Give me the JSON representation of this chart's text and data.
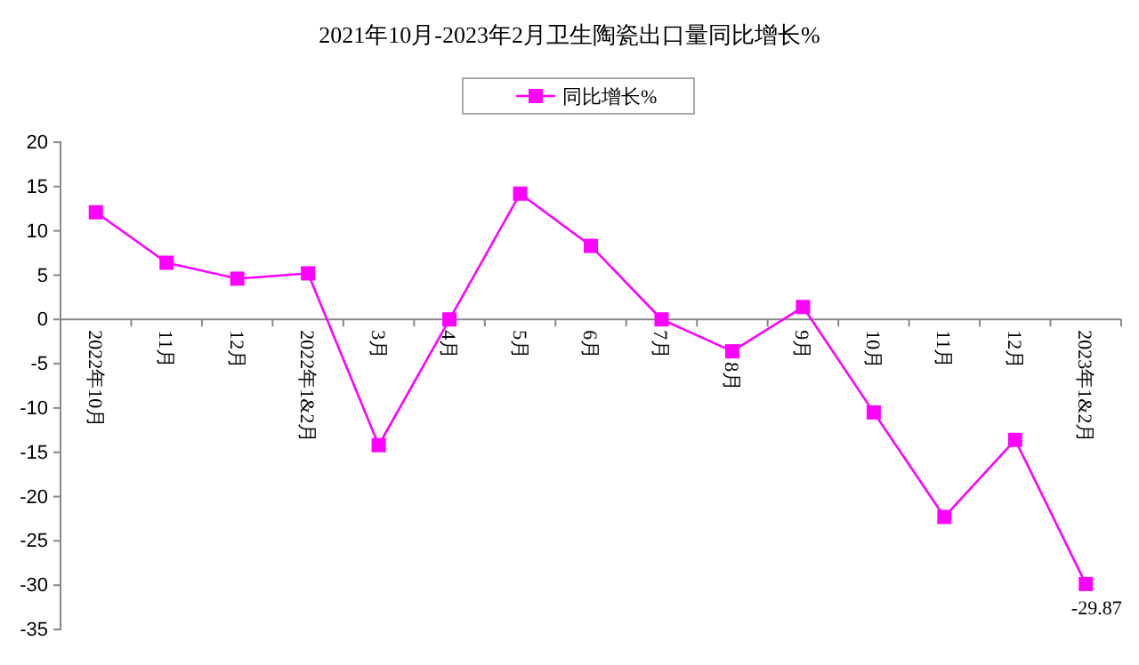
{
  "chart_data": {
    "type": "line",
    "title": "2021年10月-2023年2月卫生陶瓷出口量同比增长%",
    "categories": [
      "2022年10月",
      "11月",
      "12月",
      "2022年1&2月",
      "3月",
      "4月",
      "5月",
      "6月",
      "7月",
      "8月",
      "9月",
      "10月",
      "11月",
      "12月",
      "2023年1&2月"
    ],
    "series": [
      {
        "name": "同比增长%",
        "color": "#ff00ff",
        "values": [
          12.1,
          6.4,
          4.6,
          5.2,
          -14.2,
          0,
          14.2,
          8.3,
          0,
          -3.6,
          1.4,
          -10.5,
          -22.3,
          -13.6,
          -29.87
        ],
        "value_labels": [
          null,
          null,
          null,
          null,
          null,
          null,
          null,
          null,
          null,
          null,
          null,
          null,
          null,
          null,
          "-29.87"
        ]
      }
    ],
    "ylim": [
      -35,
      20
    ],
    "yticks": [
      -35,
      -30,
      -25,
      -20,
      -15,
      -10,
      -5,
      0,
      5,
      10,
      15,
      20
    ],
    "marker": "square",
    "line_style": "solid",
    "legend": "top",
    "grid": false
  }
}
